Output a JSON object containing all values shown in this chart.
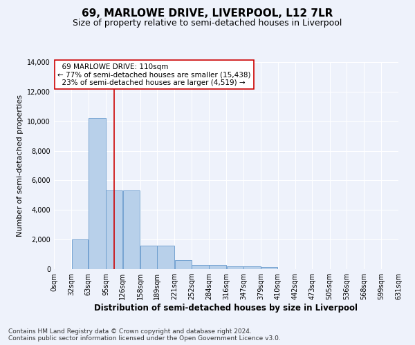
{
  "title": "69, MARLOWE DRIVE, LIVERPOOL, L12 7LR",
  "subtitle": "Size of property relative to semi-detached houses in Liverpool",
  "xlabel": "Distribution of semi-detached houses by size in Liverpool",
  "ylabel": "Number of semi-detached properties",
  "bar_color": "#b8d0ea",
  "bar_edge_color": "#6699cc",
  "property_size": 110,
  "property_label": "69 MARLOWE DRIVE: 110sqm",
  "pct_smaller": 77,
  "count_smaller": 15438,
  "pct_larger": 23,
  "count_larger": 4519,
  "vline_color": "#cc0000",
  "bar_heights": [
    0,
    2000,
    10200,
    5300,
    5300,
    1600,
    1600,
    600,
    280,
    280,
    170,
    170,
    120,
    0,
    0,
    0,
    0,
    0,
    0,
    0
  ],
  "bin_edges": [
    0,
    32,
    63,
    95,
    126,
    158,
    189,
    221,
    252,
    284,
    316,
    347,
    379,
    410,
    442,
    473,
    505,
    536,
    568,
    599,
    631
  ],
  "tick_labels": [
    "0sqm",
    "32sqm",
    "63sqm",
    "95sqm",
    "126sqm",
    "158sqm",
    "189sqm",
    "221sqm",
    "252sqm",
    "284sqm",
    "316sqm",
    "347sqm",
    "379sqm",
    "410sqm",
    "442sqm",
    "473sqm",
    "505sqm",
    "536sqm",
    "568sqm",
    "599sqm",
    "631sqm"
  ],
  "ylim": [
    0,
    14000
  ],
  "yticks": [
    0,
    2000,
    4000,
    6000,
    8000,
    10000,
    12000,
    14000
  ],
  "footer_line1": "Contains HM Land Registry data © Crown copyright and database right 2024.",
  "footer_line2": "Contains public sector information licensed under the Open Government Licence v3.0.",
  "background_color": "#eef2fb",
  "grid_color": "#ffffff",
  "title_fontsize": 11,
  "subtitle_fontsize": 9,
  "axis_label_fontsize": 8,
  "tick_fontsize": 7,
  "annotation_fontsize": 7.5,
  "footer_fontsize": 6.5
}
